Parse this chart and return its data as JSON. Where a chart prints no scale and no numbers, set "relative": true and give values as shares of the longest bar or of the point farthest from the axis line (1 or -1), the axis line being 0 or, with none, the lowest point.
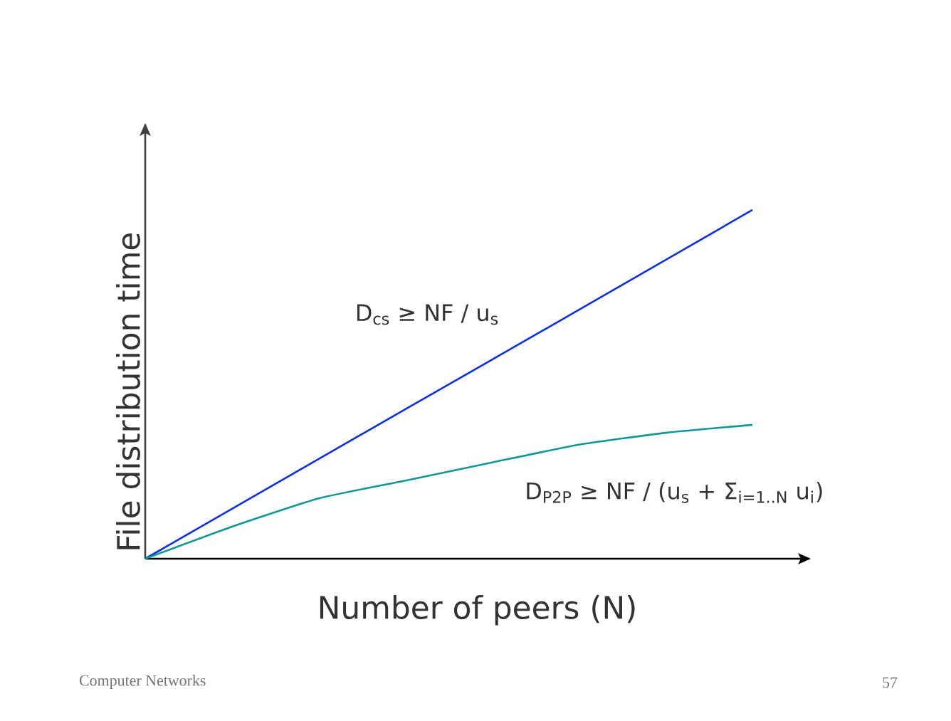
{
  "chart_data": {
    "type": "line",
    "relative": true,
    "xlabel": "Number of peers (N)",
    "ylabel": "File distribution time",
    "categories": [
      null,
      null,
      null,
      null,
      null,
      null,
      null,
      null
    ],
    "series": [
      {
        "color": "#0a2ff0",
        "values": [
          0,
          0.143,
          0.286,
          0.429,
          0.571,
          0.714,
          0.857,
          1
        ]
      },
      {
        "color": "#0a9a96",
        "values": [
          0,
          0.092,
          0.173,
          0.224,
          0.276,
          0.327,
          0.361,
          0.384
        ]
      }
    ],
    "annotations": [
      "D$_{cs}$ ≥ NF / u$_{s}$",
      "D$_{P2P}$ ≥ NF / (u$_{s}$ + Σ$_{i=1..N}$ u$_{i}$)",
      "Computer Networks",
      "57"
    ],
    "marker": "none",
    "line_style": "solid"
  }
}
